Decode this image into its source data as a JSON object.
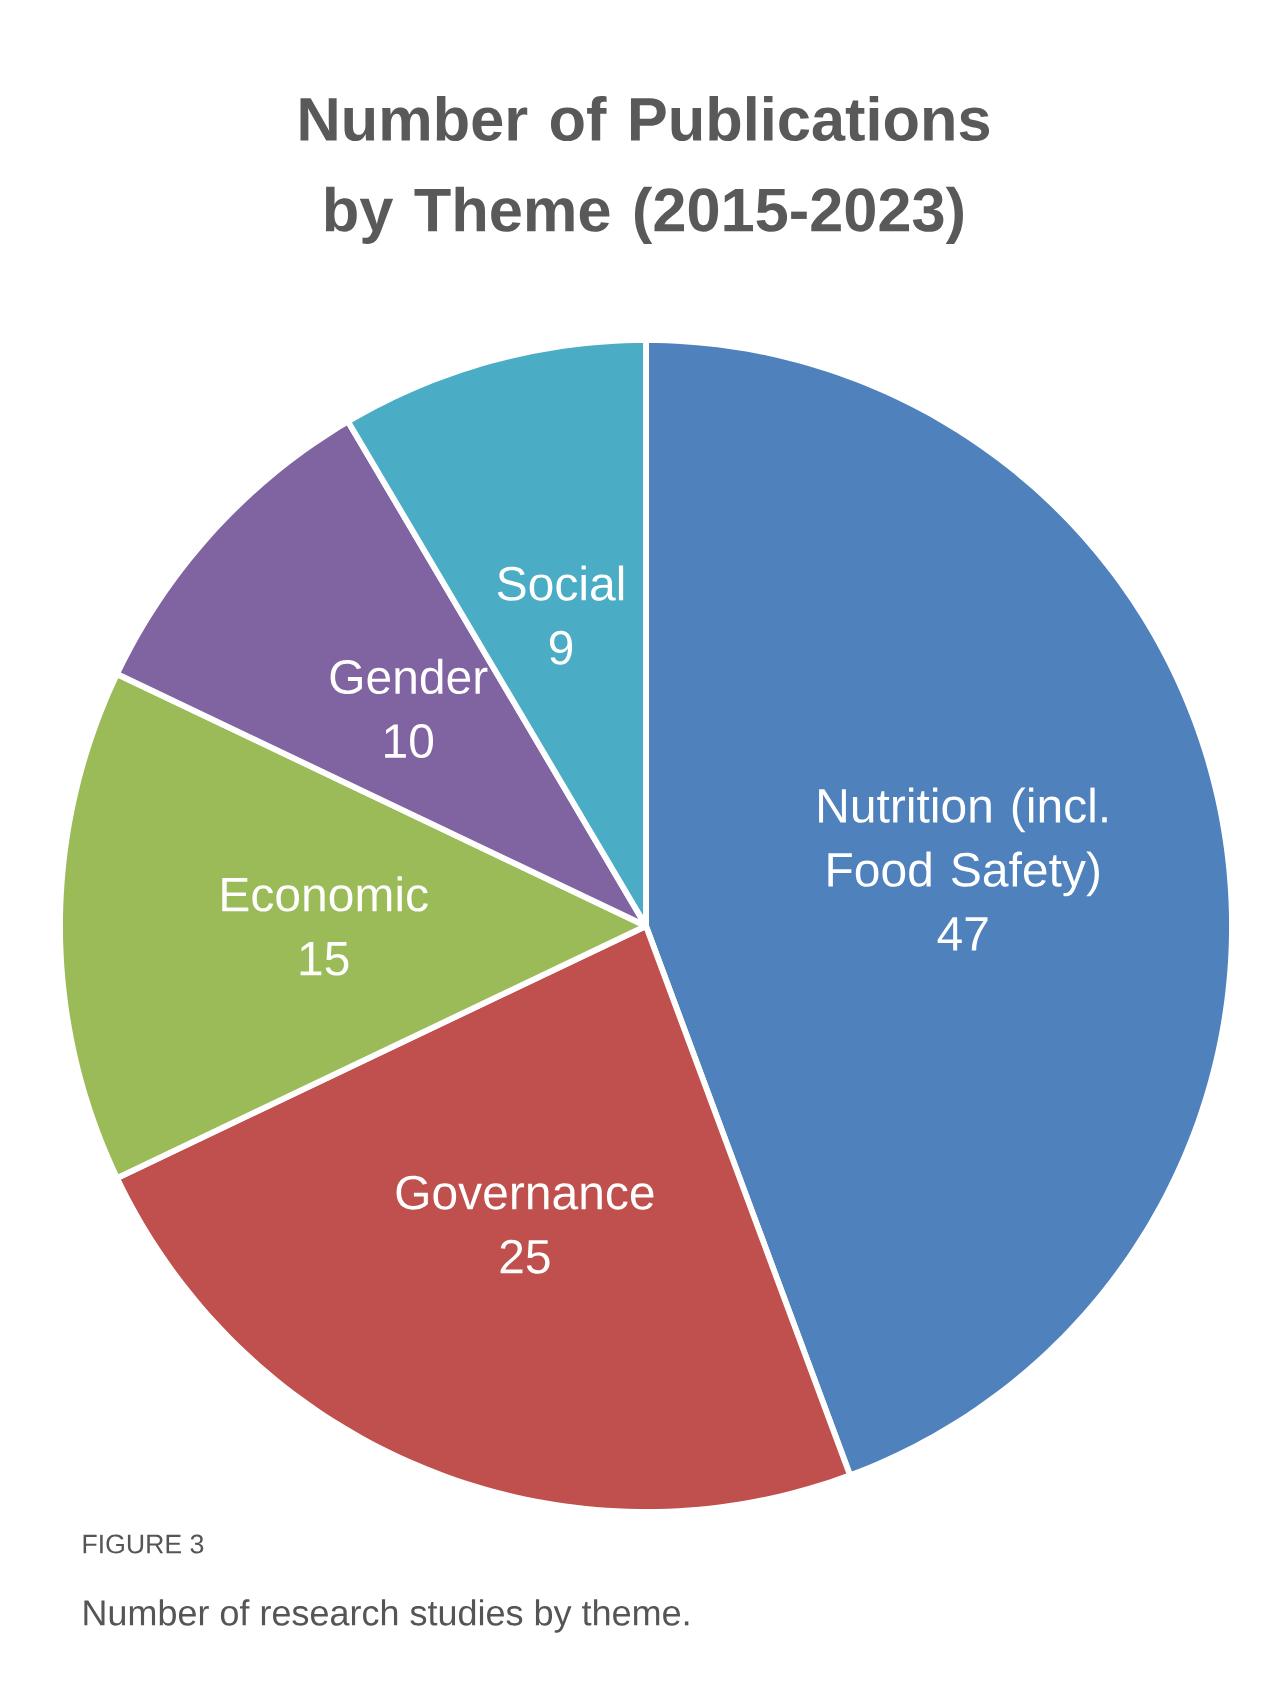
{
  "chart_data": {
    "type": "pie",
    "title": "Number of Publications by Theme (2015-2023)",
    "categories": [
      "Nutrition (incl. Food Safety)",
      "Governance",
      "Economic",
      "Gender",
      "Social"
    ],
    "values": [
      47,
      25,
      15,
      10,
      9
    ],
    "colors": [
      "#4f81bd",
      "#c0504d",
      "#9bbb59",
      "#8064a2",
      "#4bacc6"
    ],
    "data_labels": true,
    "annotations": [
      "FIGURE 3",
      "Number of research studies by theme."
    ]
  }
}
